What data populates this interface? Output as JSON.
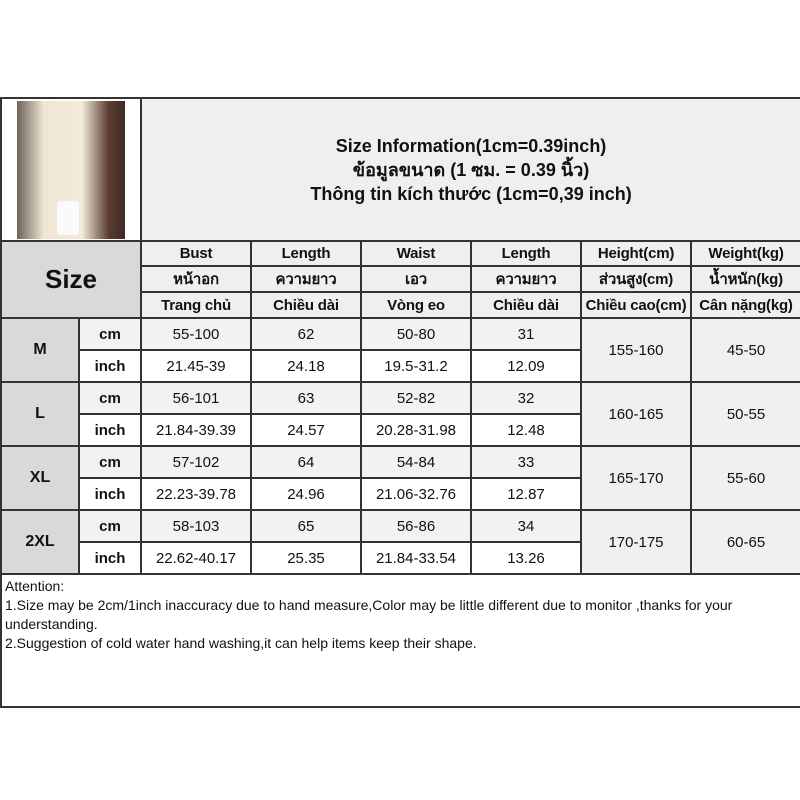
{
  "header": {
    "title_lines": [
      "Size Information(1cm=0.39inch)",
      "ข้อมูลขนาด (1 ซม. = 0.39 นิ้ว)",
      "Thông tin kích thước (1cm=0,39 inch)"
    ],
    "size_label": "Size",
    "photo": "product-photo-pajama-set"
  },
  "columns": [
    {
      "en": "Bust",
      "th": "หน้าอก",
      "vi": "Trang chủ"
    },
    {
      "en": "Length",
      "th": "ความยาว",
      "vi": "Chiều dài"
    },
    {
      "en": "Waist",
      "th": "เอว",
      "vi": "Vòng eo"
    },
    {
      "en": "Length",
      "th": "ความยาว",
      "vi": "Chiều dài"
    },
    {
      "en": "Height(cm)",
      "th": "ส่วนสูง(cm)",
      "vi": "Chiều cao(cm)"
    },
    {
      "en": "Weight(kg)",
      "th": "น้ำหนัก(kg)",
      "vi": "Cân nặng(kg)"
    }
  ],
  "units": {
    "cm": "cm",
    "inch": "inch"
  },
  "sizes": [
    {
      "size": "M",
      "cm": [
        "55-100",
        "62",
        "50-80",
        "31"
      ],
      "inch": [
        "21.45-39",
        "24.18",
        "19.5-31.2",
        "12.09"
      ],
      "height": "155-160",
      "weight": "45-50"
    },
    {
      "size": "L",
      "cm": [
        "56-101",
        "63",
        "52-82",
        "32"
      ],
      "inch": [
        "21.84-39.39",
        "24.57",
        "20.28-31.98",
        "12.48"
      ],
      "height": "160-165",
      "weight": "50-55"
    },
    {
      "size": "XL",
      "cm": [
        "57-102",
        "64",
        "54-84",
        "33"
      ],
      "inch": [
        "22.23-39.78",
        "24.96",
        "21.06-32.76",
        "12.87"
      ],
      "height": "165-170",
      "weight": "55-60"
    },
    {
      "size": "2XL",
      "cm": [
        "58-103",
        "65",
        "56-86",
        "34"
      ],
      "inch": [
        "22.62-40.17",
        "25.35",
        "21.84-33.54",
        "13.26"
      ],
      "height": "170-175",
      "weight": "60-65"
    }
  ],
  "attention": {
    "heading": "Attention:",
    "lines": [
      "1.Size may be 2cm/1inch inaccuracy due to hand measure,Color may be little different due to monitor ,thanks for your understanding.",
      "2.Suggestion of cold water hand washing,it can help items keep their shape."
    ]
  }
}
